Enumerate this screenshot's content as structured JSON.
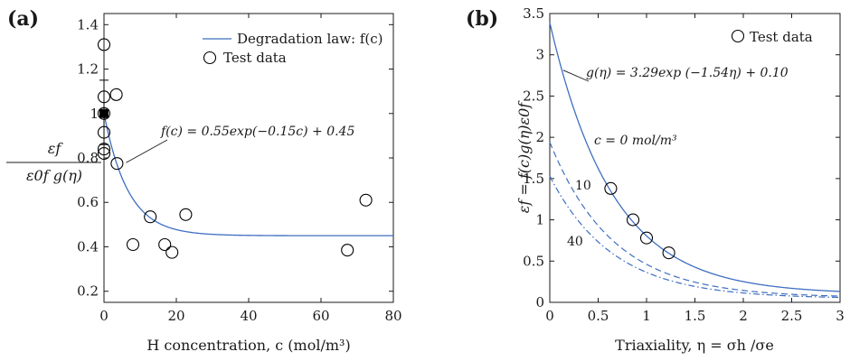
{
  "colors": {
    "curve": "#3f6fc1",
    "ink": "#1a1a1a",
    "marker": "#000000"
  },
  "chart_data": [
    {
      "type": "scatter",
      "panel_label": "(a)",
      "xlabel": "H concentration, c (mol/m³)",
      "ylabel_num": "εf",
      "ylabel_den": "ε0f g(η)",
      "xlim": [
        0,
        80
      ],
      "ylim": [
        0.15,
        1.45
      ],
      "xticks": [
        0,
        20,
        40,
        60,
        80
      ],
      "yticks": [
        0.2,
        0.4,
        0.6,
        0.8,
        1.0,
        1.2,
        1.4
      ],
      "xtick_labels": [
        "0",
        "20",
        "40",
        "60",
        "80"
      ],
      "ytick_labels": [
        "0.2",
        "0.4",
        "0.6",
        "0.8",
        "1",
        "1.2",
        "1.4"
      ],
      "legend_position": "top-right",
      "series": [
        {
          "name": "Degradation law: f(c)",
          "kind": "line",
          "a": 0.55,
          "b": 0.15,
          "d": 0.45
        },
        {
          "name": "Test data",
          "kind": "points",
          "points": [
            [
              0,
              1.31
            ],
            [
              0,
              1.075
            ],
            [
              0,
              1.0
            ],
            [
              0,
              0.915
            ],
            [
              0,
              0.84
            ],
            [
              0,
              0.82
            ],
            [
              3.4,
              1.085
            ],
            [
              3.6,
              0.775
            ],
            [
              8,
              0.41
            ],
            [
              12.8,
              0.535
            ],
            [
              16.8,
              0.41
            ],
            [
              18.8,
              0.375
            ],
            [
              22.6,
              0.545
            ],
            [
              67.3,
              0.385
            ],
            [
              72.4,
              0.61
            ]
          ]
        }
      ],
      "mean_point": {
        "x": 0,
        "y": 1.0,
        "err_low": 0.86,
        "err_high": 1.15
      },
      "annotation": "f(c) = 0.55exp(−0.15c) + 0.45"
    },
    {
      "type": "line",
      "panel_label": "(b)",
      "xlabel": "Triaxiality, η = σh /σe",
      "ylabel": "εf = f(c)g(η)ε0f",
      "xlim": [
        0,
        3
      ],
      "ylim": [
        0,
        3.5
      ],
      "xticks": [
        0,
        0.5,
        1,
        1.5,
        2,
        2.5,
        3
      ],
      "yticks": [
        0,
        0.5,
        1,
        1.5,
        2,
        2.5,
        3,
        3.5
      ],
      "xtick_labels": [
        "0",
        "0.5",
        "1",
        "1.5",
        "2",
        "2.5",
        "3"
      ],
      "ytick_labels": [
        "0",
        "0.5",
        "1",
        "1.5",
        "2",
        "2.5",
        "3",
        "3.5"
      ],
      "legend_position": "top-right",
      "g_eta": {
        "A": 3.29,
        "k": 1.54,
        "B": 0.1
      },
      "series": [
        {
          "name": "c = 0 mol/m³",
          "label": "c = 0 mol/m³",
          "c": 0,
          "style": "solid"
        },
        {
          "name": "10",
          "label": "10",
          "c": 10,
          "style": "dashed"
        },
        {
          "name": "40",
          "label": "40",
          "c": 40,
          "style": "dashdot"
        }
      ],
      "test_data": {
        "name": "Test data",
        "points": [
          [
            0.63,
            1.38
          ],
          [
            0.86,
            1.0
          ],
          [
            1.0,
            0.78
          ],
          [
            1.23,
            0.6
          ]
        ]
      },
      "annotation": "g(η) = 3.29exp (−1.54η) + 0.10"
    }
  ]
}
